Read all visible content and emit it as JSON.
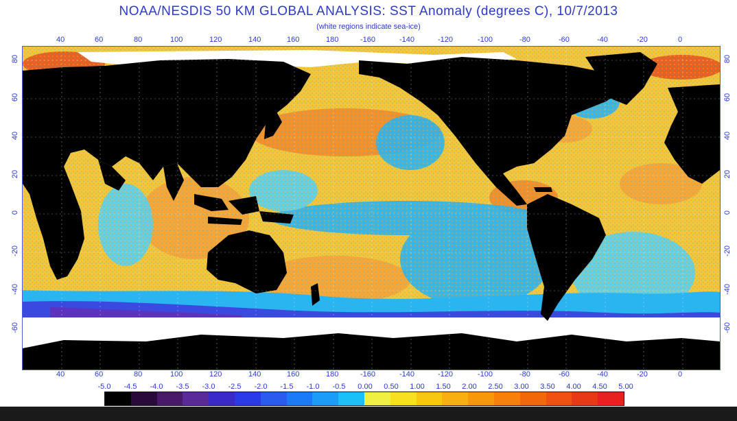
{
  "header": {
    "title": "NOAA/NESDIS 50 KM GLOBAL ANALYSIS: SST Anomaly (degrees C), 10/7/2013",
    "subtitle": "(white regions indicate sea-ice)"
  },
  "axes": {
    "longitude_labels": [
      "40",
      "60",
      "80",
      "100",
      "120",
      "140",
      "160",
      "180",
      "-160",
      "-140",
      "-120",
      "-100",
      "-80",
      "-60",
      "-40",
      "-20",
      "0"
    ],
    "latitude_labels": [
      "80",
      "60",
      "40",
      "20",
      "0",
      "-20",
      "-40",
      "-60"
    ]
  },
  "colorbar": {
    "labels": [
      "-5.0",
      "-4.5",
      "-4.0",
      "-3.5",
      "-3.0",
      "-2.5",
      "-2.0",
      "-1.5",
      "-1.0",
      "-0.5",
      "0.00",
      "0.50",
      "1.00",
      "1.50",
      "2.00",
      "2.50",
      "3.00",
      "3.50",
      "4.00",
      "4.50",
      "5.00"
    ],
    "colors": [
      "#000000",
      "#2a0a3a",
      "#4a1a6a",
      "#5a2a9a",
      "#3a2ac8",
      "#2a3ae8",
      "#2a5af0",
      "#1a7af8",
      "#1a9cf8",
      "#1ac0f8",
      "#f0f040",
      "#f8e020",
      "#f8c810",
      "#f8b010",
      "#f89808",
      "#f88008",
      "#f06808",
      "#f05010",
      "#e83818",
      "#e82020"
    ]
  },
  "colors": {
    "ocean_warm": "#f5d040",
    "ocean_orange": "#f59a30",
    "ocean_cool": "#2ab4f0",
    "ocean_cold": "#2a40e0",
    "land": "#000000",
    "ice": "#ffffff",
    "accent": "#2b39c8"
  }
}
